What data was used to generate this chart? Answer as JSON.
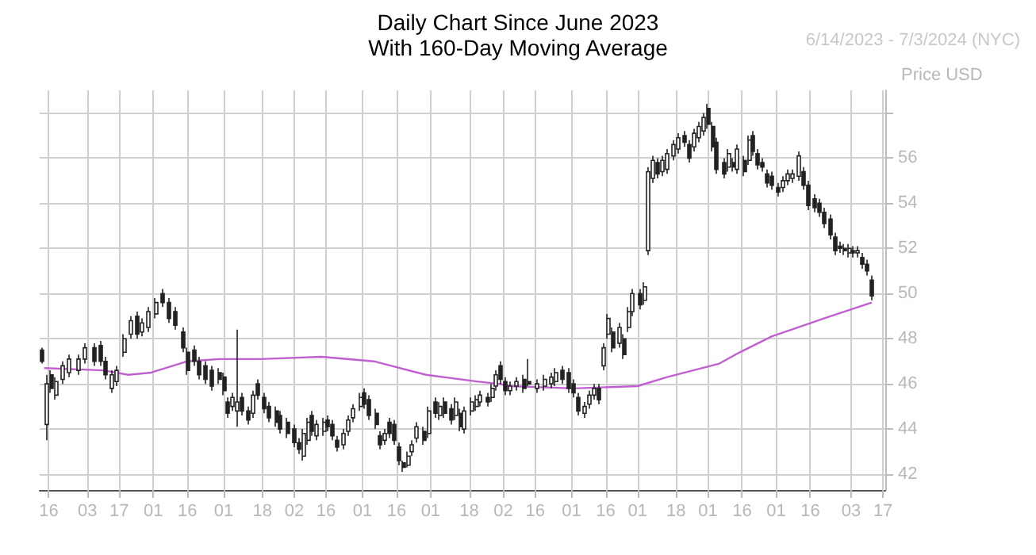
{
  "chart_data": {
    "type": "candlestick",
    "title": "Daily Chart Since June 2023",
    "subtitle": "With 160-Day Moving Average",
    "ylabel": "Price USD",
    "annotations": [
      "6/14/2023 - 7/3/2024 (NYC)"
    ],
    "xlim": [
      "2023-06-12",
      "2024-06-18"
    ],
    "xticks": [
      {
        "value": "2023-06-16",
        "label": "16"
      },
      {
        "value": "2023-07-03",
        "label": "03"
      },
      {
        "value": "2023-07-17",
        "label": "17"
      },
      {
        "value": "2023-08-01",
        "label": "01"
      },
      {
        "value": "2023-08-16",
        "label": "16"
      },
      {
        "value": "2023-09-01",
        "label": "01"
      },
      {
        "value": "2023-09-18",
        "label": "18"
      },
      {
        "value": "2023-10-02",
        "label": "02"
      },
      {
        "value": "2023-10-16",
        "label": "16"
      },
      {
        "value": "2023-11-01",
        "label": "01"
      },
      {
        "value": "2023-11-16",
        "label": "16"
      },
      {
        "value": "2023-12-01",
        "label": "01"
      },
      {
        "value": "2023-12-18",
        "label": "18"
      },
      {
        "value": "2024-01-02",
        "label": "02"
      },
      {
        "value": "2024-01-16",
        "label": "16"
      },
      {
        "value": "2024-02-01",
        "label": "01"
      },
      {
        "value": "2024-02-16",
        "label": "16"
      },
      {
        "value": "2024-03-01",
        "label": "01"
      },
      {
        "value": "2024-03-18",
        "label": "18"
      },
      {
        "value": "2024-04-01",
        "label": "01"
      },
      {
        "value": "2024-04-16",
        "label": "16"
      },
      {
        "value": "2024-05-01",
        "label": "01"
      },
      {
        "value": "2024-05-16",
        "label": "16"
      },
      {
        "value": "2024-06-03",
        "label": "03"
      },
      {
        "value": "2024-06-17",
        "label": "17"
      }
    ],
    "ylim": [
      41.3,
      59
    ],
    "yticks": [
      42,
      44,
      46,
      48,
      50,
      52,
      54,
      56,
      {
        "value": 58,
        "label": null
      }
    ],
    "grid": true,
    "series": [
      {
        "color": "#222222",
        "x": [
          "2023-06-13",
          "2023-06-15",
          "2023-06-17",
          "2023-06-19",
          "2023-06-22",
          "2023-06-25",
          "2023-06-29",
          "2023-07-02",
          "2023-07-06",
          "2023-07-09",
          "2023-07-11",
          "2023-07-14",
          "2023-07-16",
          "2023-07-19",
          "2023-07-22",
          "2023-07-25",
          "2023-07-27",
          "2023-07-30",
          "2023-08-02",
          "2023-08-05",
          "2023-08-08",
          "2023-08-11",
          "2023-08-14",
          "2023-08-16",
          "2023-08-19",
          "2023-08-21",
          "2023-08-24",
          "2023-08-27",
          "2023-08-30",
          "2023-09-01",
          "2023-09-03",
          "2023-09-05",
          "2023-09-07",
          "2023-09-09",
          "2023-09-12",
          "2023-09-14",
          "2023-09-16",
          "2023-09-19",
          "2023-09-21",
          "2023-09-24",
          "2023-09-26",
          "2023-09-29",
          "2023-10-02",
          "2023-10-04",
          "2023-10-06",
          "2023-10-08",
          "2023-10-10",
          "2023-10-12",
          "2023-10-15",
          "2023-10-17",
          "2023-10-19",
          "2023-10-21",
          "2023-10-24",
          "2023-10-26",
          "2023-10-28",
          "2023-10-31",
          "2023-11-02",
          "2023-11-04",
          "2023-11-07",
          "2023-11-09",
          "2023-11-11",
          "2023-11-13",
          "2023-11-15",
          "2023-11-17",
          "2023-11-19",
          "2023-11-21",
          "2023-11-23",
          "2023-11-25",
          "2023-11-28",
          "2023-11-30",
          "2023-12-03",
          "2023-12-05",
          "2023-12-07",
          "2023-12-10",
          "2023-12-12",
          "2023-12-14",
          "2023-12-16",
          "2023-12-19",
          "2023-12-21",
          "2023-12-23",
          "2023-12-26",
          "2023-12-28",
          "2023-12-30",
          "2024-01-01",
          "2024-01-03",
          "2024-01-05",
          "2024-01-08",
          "2024-01-11",
          "2024-01-13",
          "2024-01-17",
          "2024-01-20",
          "2024-01-23",
          "2024-01-25",
          "2024-01-28",
          "2024-01-31",
          "2024-02-02",
          "2024-02-04",
          "2024-02-07",
          "2024-02-09",
          "2024-02-11",
          "2024-02-13",
          "2024-02-15",
          "2024-02-17",
          "2024-02-19",
          "2024-02-22",
          "2024-02-24",
          "2024-02-26",
          "2024-02-28",
          "2024-03-02",
          "2024-03-04",
          "2024-03-06",
          "2024-03-08",
          "2024-03-10",
          "2024-03-12",
          "2024-03-14",
          "2024-03-17",
          "2024-03-19",
          "2024-03-22",
          "2024-03-24",
          "2024-03-26",
          "2024-03-28",
          "2024-03-30",
          "2024-04-01",
          "2024-04-03",
          "2024-04-05",
          "2024-04-08",
          "2024-04-10",
          "2024-04-12",
          "2024-04-14",
          "2024-04-17",
          "2024-04-19",
          "2024-04-21",
          "2024-04-23",
          "2024-04-25",
          "2024-04-27",
          "2024-04-29",
          "2024-05-02",
          "2024-05-04",
          "2024-05-06",
          "2024-05-08",
          "2024-05-11",
          "2024-05-13",
          "2024-05-15",
          "2024-05-18",
          "2024-05-20",
          "2024-05-22",
          "2024-05-25",
          "2024-05-27",
          "2024-05-29",
          "2024-05-31",
          "2024-06-02",
          "2024-06-04",
          "2024-06-06",
          "2024-06-08",
          "2024-06-10",
          "2024-06-12"
        ],
        "ohlc": [
          [
            47.5,
            47.6,
            46.9,
            47.0
          ],
          [
            44.2,
            46.4,
            43.5,
            46.0
          ],
          [
            46.4,
            46.6,
            45.6,
            45.8
          ],
          [
            45.5,
            46.3,
            45.3,
            46.1
          ],
          [
            46.2,
            47.0,
            46.0,
            46.8
          ],
          [
            46.5,
            47.3,
            46.3,
            47.1
          ],
          [
            46.6,
            47.3,
            46.4,
            47.1
          ],
          [
            47.1,
            47.8,
            46.9,
            47.6
          ],
          [
            47.6,
            47.8,
            46.8,
            47.0
          ],
          [
            47.7,
            47.9,
            46.8,
            47.0
          ],
          [
            47.0,
            47.2,
            46.2,
            46.4
          ],
          [
            45.8,
            46.6,
            45.6,
            46.4
          ],
          [
            46.1,
            46.8,
            45.9,
            46.6
          ],
          [
            47.4,
            48.2,
            47.2,
            48.0
          ],
          [
            48.2,
            49.0,
            48.0,
            48.8
          ],
          [
            49.0,
            49.2,
            48.0,
            48.2
          ],
          [
            48.3,
            48.9,
            48.1,
            48.7
          ],
          [
            48.5,
            49.4,
            48.3,
            49.2
          ],
          [
            49.1,
            49.8,
            48.9,
            49.6
          ],
          [
            50.0,
            50.2,
            49.4,
            49.6
          ],
          [
            49.6,
            49.8,
            48.7,
            48.9
          ],
          [
            49.2,
            49.4,
            48.4,
            48.6
          ],
          [
            48.3,
            48.5,
            47.4,
            47.6
          ],
          [
            47.4,
            47.6,
            46.4,
            46.6
          ],
          [
            47.5,
            47.7,
            46.8,
            47.0
          ],
          [
            47.0,
            47.2,
            46.2,
            46.4
          ],
          [
            46.8,
            47.0,
            46.0,
            46.2
          ],
          [
            46.6,
            46.8,
            45.7,
            45.9
          ],
          [
            46.5,
            46.7,
            46.0,
            46.2
          ],
          [
            46.3,
            46.5,
            45.5,
            45.7
          ],
          [
            45.2,
            45.4,
            44.5,
            44.7
          ],
          [
            45.0,
            45.6,
            44.8,
            45.4
          ],
          [
            44.8,
            48.4,
            44.1,
            45.2
          ],
          [
            45.4,
            45.6,
            44.6,
            44.8
          ],
          [
            44.8,
            45.0,
            44.2,
            44.4
          ],
          [
            44.7,
            45.7,
            44.5,
            45.5
          ],
          [
            46.0,
            46.2,
            45.3,
            45.5
          ],
          [
            45.4,
            45.6,
            44.7,
            44.9
          ],
          [
            45.0,
            45.2,
            44.3,
            44.5
          ],
          [
            44.8,
            45.0,
            44.1,
            44.3
          ],
          [
            44.6,
            44.8,
            43.8,
            44.0
          ],
          [
            44.3,
            44.5,
            43.6,
            43.8
          ],
          [
            44.0,
            44.2,
            43.2,
            43.4
          ],
          [
            43.4,
            43.6,
            42.9,
            43.1
          ],
          [
            42.8,
            44.0,
            42.6,
            43.8
          ],
          [
            43.5,
            44.5,
            43.3,
            44.3
          ],
          [
            44.6,
            44.8,
            43.7,
            43.9
          ],
          [
            43.7,
            44.4,
            43.5,
            44.2
          ],
          [
            43.9,
            44.5,
            43.7,
            44.3
          ],
          [
            44.4,
            44.6,
            43.9,
            44.1
          ],
          [
            44.2,
            44.4,
            43.5,
            43.7
          ],
          [
            43.5,
            43.7,
            43.0,
            43.2
          ],
          [
            43.3,
            44.0,
            43.1,
            43.8
          ],
          [
            43.9,
            44.6,
            43.7,
            44.4
          ],
          [
            44.5,
            45.1,
            44.3,
            44.9
          ],
          [
            45.0,
            45.6,
            44.8,
            45.4
          ],
          [
            45.6,
            45.8,
            44.9,
            45.1
          ],
          [
            45.3,
            45.5,
            44.4,
            44.6
          ],
          [
            44.7,
            44.9,
            44.0,
            44.2
          ],
          [
            43.7,
            43.9,
            43.1,
            43.3
          ],
          [
            43.5,
            44.0,
            43.3,
            43.8
          ],
          [
            44.3,
            44.5,
            43.6,
            43.8
          ],
          [
            44.2,
            44.4,
            43.3,
            43.5
          ],
          [
            43.2,
            43.4,
            42.4,
            42.6
          ],
          [
            42.5,
            42.6,
            42.1,
            42.3
          ],
          [
            42.4,
            43.0,
            42.3,
            42.8
          ],
          [
            43.0,
            43.5,
            42.8,
            43.3
          ],
          [
            43.6,
            44.3,
            43.4,
            44.1
          ],
          [
            43.9,
            44.1,
            43.3,
            43.5
          ],
          [
            43.8,
            45.0,
            43.6,
            44.8
          ],
          [
            45.2,
            45.4,
            44.5,
            44.7
          ],
          [
            44.6,
            45.2,
            44.4,
            45.0
          ],
          [
            45.2,
            45.4,
            44.5,
            44.7
          ],
          [
            44.9,
            45.1,
            44.2,
            44.4
          ],
          [
            44.6,
            45.4,
            44.4,
            45.2
          ],
          [
            44.7,
            44.9,
            43.9,
            44.1
          ],
          [
            44.0,
            45.0,
            43.8,
            44.8
          ],
          [
            44.8,
            45.4,
            44.6,
            45.2
          ],
          [
            45.0,
            45.5,
            44.8,
            45.3
          ],
          [
            45.2,
            45.7,
            45.0,
            45.5
          ],
          [
            45.4,
            45.6,
            45.0,
            45.2
          ],
          [
            45.4,
            46.0,
            45.2,
            45.8
          ],
          [
            45.9,
            46.6,
            45.7,
            46.4
          ],
          [
            46.8,
            47.0,
            46.0,
            46.2
          ],
          [
            46.1,
            46.3,
            45.5,
            45.7
          ],
          [
            45.7,
            46.1,
            45.5,
            45.9
          ],
          [
            45.9,
            46.3,
            45.7,
            46.1
          ],
          [
            46.2,
            46.4,
            45.6,
            45.8
          ],
          [
            46.1,
            47.1,
            45.9,
            46.0
          ],
          [
            45.8,
            46.2,
            45.6,
            46.0
          ],
          [
            45.9,
            46.4,
            45.7,
            46.2
          ],
          [
            46.0,
            46.5,
            45.8,
            46.3
          ],
          [
            46.1,
            46.7,
            45.9,
            46.5
          ],
          [
            46.6,
            46.8,
            46.0,
            46.2
          ],
          [
            46.5,
            46.7,
            45.6,
            45.8
          ],
          [
            46.0,
            46.2,
            45.4,
            45.6
          ],
          [
            45.4,
            45.6,
            44.6,
            44.8
          ],
          [
            44.7,
            45.2,
            44.5,
            45.0
          ],
          [
            45.1,
            45.7,
            44.9,
            45.5
          ],
          [
            45.5,
            46.0,
            45.3,
            45.8
          ],
          [
            45.8,
            46.0,
            45.1,
            45.3
          ],
          [
            46.8,
            47.8,
            46.6,
            47.6
          ],
          [
            48.2,
            49.1,
            48.0,
            48.9
          ],
          [
            48.3,
            48.5,
            47.4,
            47.6
          ],
          [
            47.8,
            48.7,
            47.6,
            48.5
          ],
          [
            48.0,
            48.2,
            47.1,
            47.3
          ],
          [
            48.5,
            49.4,
            48.3,
            49.2
          ],
          [
            49.2,
            50.2,
            49.0,
            50.0
          ],
          [
            50.0,
            50.2,
            49.3,
            49.5
          ],
          [
            49.7,
            50.5,
            49.5,
            50.3
          ],
          [
            51.9,
            55.6,
            51.7,
            55.4
          ],
          [
            55.1,
            56.1,
            54.9,
            55.9
          ],
          [
            55.8,
            56.0,
            55.1,
            55.3
          ],
          [
            55.4,
            56.1,
            55.2,
            55.9
          ],
          [
            55.5,
            56.4,
            55.3,
            56.2
          ],
          [
            56.1,
            56.8,
            55.9,
            56.6
          ],
          [
            56.4,
            57.1,
            56.2,
            56.9
          ],
          [
            57.0,
            57.2,
            56.5,
            56.7
          ],
          [
            56.6,
            56.8,
            55.8,
            56.0
          ],
          [
            56.5,
            57.3,
            56.3,
            57.1
          ],
          [
            56.9,
            57.6,
            56.7,
            57.4
          ],
          [
            57.2,
            58.0,
            57.0,
            57.8
          ],
          [
            58.2,
            58.4,
            57.3,
            57.5
          ],
          [
            57.4,
            57.6,
            56.3,
            56.5
          ],
          [
            56.7,
            56.9,
            55.3,
            55.5
          ],
          [
            55.8,
            56.0,
            55.1,
            55.3
          ],
          [
            55.6,
            56.4,
            55.4,
            56.2
          ],
          [
            55.8,
            56.0,
            55.4,
            55.6
          ],
          [
            55.5,
            56.6,
            55.3,
            56.4
          ],
          [
            55.9,
            56.1,
            55.2,
            55.4
          ],
          [
            55.9,
            57.0,
            55.7,
            56.8
          ],
          [
            57.0,
            57.2,
            56.1,
            56.3
          ],
          [
            56.2,
            56.4,
            55.5,
            55.7
          ],
          [
            55.8,
            56.0,
            55.4,
            55.6
          ],
          [
            55.3,
            55.5,
            54.7,
            54.9
          ],
          [
            55.2,
            55.4,
            54.6,
            54.8
          ],
          [
            54.7,
            54.9,
            54.3,
            54.5
          ],
          [
            54.7,
            55.2,
            54.5,
            55.0
          ],
          [
            55.0,
            55.5,
            54.8,
            55.3
          ],
          [
            55.1,
            55.5,
            54.9,
            55.3
          ],
          [
            55.2,
            56.3,
            55.0,
            56.1
          ],
          [
            55.4,
            55.6,
            54.6,
            54.8
          ],
          [
            54.8,
            55.0,
            53.7,
            53.9
          ],
          [
            54.2,
            54.4,
            53.6,
            53.8
          ],
          [
            54.0,
            54.2,
            53.4,
            53.6
          ],
          [
            53.6,
            53.8,
            52.9,
            53.1
          ],
          [
            53.3,
            53.5,
            52.4,
            52.6
          ],
          [
            52.5,
            52.7,
            51.7,
            51.9
          ],
          [
            52.1,
            52.3,
            51.8,
            52.0
          ],
          [
            52.0,
            52.2,
            51.7,
            51.9
          ],
          [
            51.8,
            52.2,
            51.6,
            52.0
          ],
          [
            51.9,
            52.1,
            51.6,
            51.8
          ],
          [
            51.8,
            52.1,
            51.6,
            51.9
          ],
          [
            51.6,
            51.8,
            51.1,
            51.3
          ],
          [
            51.3,
            51.5,
            50.8,
            51.0
          ],
          [
            50.6,
            50.8,
            49.7,
            49.9
          ]
        ]
      },
      {
        "type": "line",
        "color": "#c060d0",
        "marker": "none",
        "line_style": "solid",
        "x": [
          "2023-06-14",
          "2023-07-10",
          "2023-07-21",
          "2023-07-31",
          "2023-08-16",
          "2023-08-30",
          "2023-09-17",
          "2023-10-14",
          "2023-11-06",
          "2023-11-29",
          "2023-12-22",
          "2023-12-31",
          "2024-01-05",
          "2024-02-02",
          "2024-03-01",
          "2024-03-14",
          "2024-04-06",
          "2024-04-15",
          "2024-04-29",
          "2024-05-22",
          "2024-06-12"
        ],
        "values": [
          46.7,
          46.6,
          46.4,
          46.5,
          47.0,
          47.1,
          47.1,
          47.2,
          47.0,
          46.4,
          46.1,
          46.0,
          45.9,
          45.8,
          45.9,
          46.3,
          46.9,
          47.4,
          48.1,
          48.9,
          49.6
        ]
      }
    ]
  }
}
